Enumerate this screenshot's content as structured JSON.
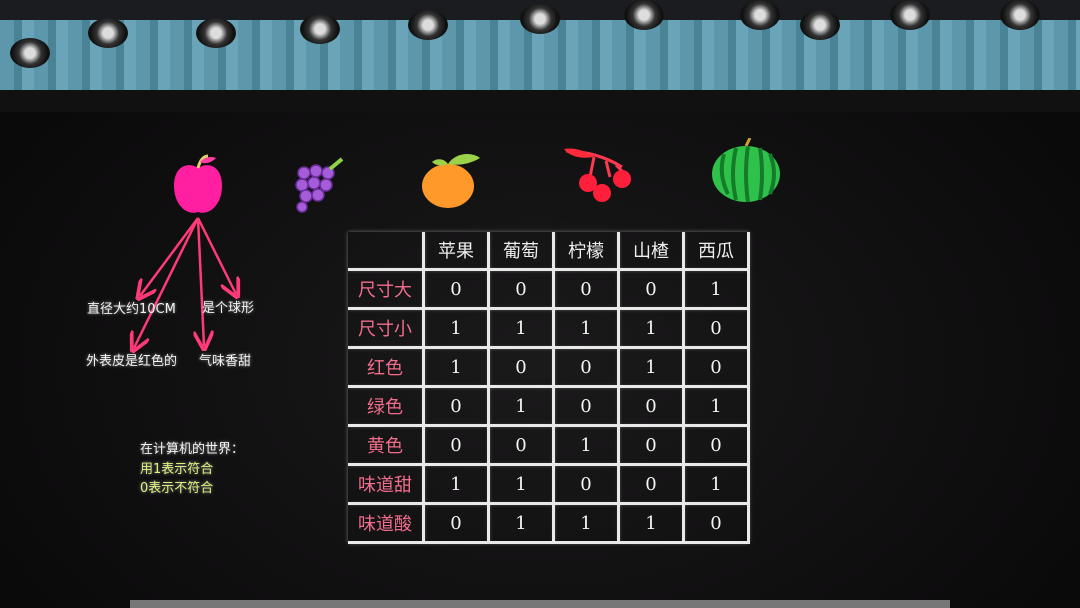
{
  "fruits": [
    "apple-icon",
    "grape-icon",
    "lemon-icon",
    "hawthorn-icon",
    "watermelon-icon"
  ],
  "apple_notes": {
    "diameter": "直径大约10CM",
    "shape": "是个球形",
    "skin": "外表皮是红色的",
    "smell": "气味香甜"
  },
  "legend": {
    "title": "在计算机的世界：",
    "line1": "用1表示符合",
    "line2": "0表示不符合"
  },
  "colors": {
    "row_label": "#f26d8c",
    "arrow": "#ff3a78",
    "legend_text": "#dff07a"
  },
  "table": {
    "columns": [
      "苹果",
      "葡萄",
      "柠檬",
      "山楂",
      "西瓜"
    ],
    "rows": [
      {
        "label": "尺寸大",
        "values": [
          "0",
          "0",
          "0",
          "0",
          "1"
        ]
      },
      {
        "label": "尺寸小",
        "values": [
          "1",
          "1",
          "1",
          "1",
          "0"
        ]
      },
      {
        "label": "红色",
        "values": [
          "1",
          "0",
          "0",
          "1",
          "0"
        ]
      },
      {
        "label": "绿色",
        "values": [
          "0",
          "1",
          "0",
          "0",
          "1"
        ]
      },
      {
        "label": "黄色",
        "values": [
          "0",
          "0",
          "1",
          "0",
          "0"
        ]
      },
      {
        "label": "味道甜",
        "values": [
          "1",
          "1",
          "0",
          "0",
          "1"
        ]
      },
      {
        "label": "味道酸",
        "values": [
          "0",
          "1",
          "1",
          "1",
          "0"
        ]
      }
    ]
  }
}
